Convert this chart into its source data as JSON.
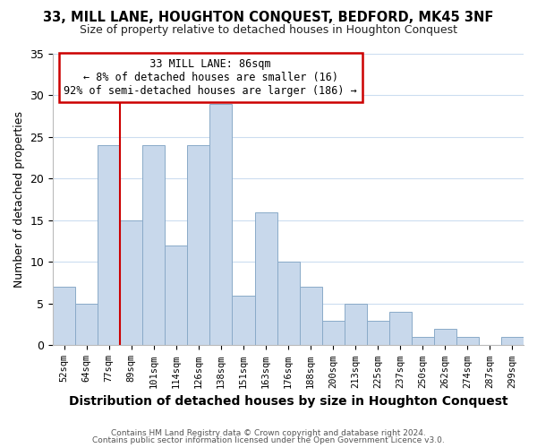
{
  "title": "33, MILL LANE, HOUGHTON CONQUEST, BEDFORD, MK45 3NF",
  "subtitle": "Size of property relative to detached houses in Houghton Conquest",
  "xlabel": "Distribution of detached houses by size in Houghton Conquest",
  "ylabel": "Number of detached properties",
  "bin_labels": [
    "52sqm",
    "64sqm",
    "77sqm",
    "89sqm",
    "101sqm",
    "114sqm",
    "126sqm",
    "138sqm",
    "151sqm",
    "163sqm",
    "176sqm",
    "188sqm",
    "200sqm",
    "213sqm",
    "225sqm",
    "237sqm",
    "250sqm",
    "262sqm",
    "274sqm",
    "287sqm",
    "299sqm"
  ],
  "bar_values": [
    7,
    5,
    24,
    15,
    24,
    12,
    24,
    29,
    6,
    16,
    10,
    7,
    3,
    5,
    3,
    4,
    1,
    2,
    1,
    0,
    1
  ],
  "bar_color": "#c8d8eb",
  "bar_edge_color": "#8aaac8",
  "vline_x_index": 2,
  "vline_color": "#cc0000",
  "ylim": [
    0,
    35
  ],
  "yticks": [
    0,
    5,
    10,
    15,
    20,
    25,
    30,
    35
  ],
  "annotation_title": "33 MILL LANE: 86sqm",
  "annotation_line1": "← 8% of detached houses are smaller (16)",
  "annotation_line2": "92% of semi-detached houses are larger (186) →",
  "annotation_box_color": "#ffffff",
  "annotation_box_edge": "#cc0000",
  "footer_line1": "Contains HM Land Registry data © Crown copyright and database right 2024.",
  "footer_line2": "Contains public sector information licensed under the Open Government Licence v3.0.",
  "background_color": "#ffffff",
  "grid_color": "#ccddf0"
}
